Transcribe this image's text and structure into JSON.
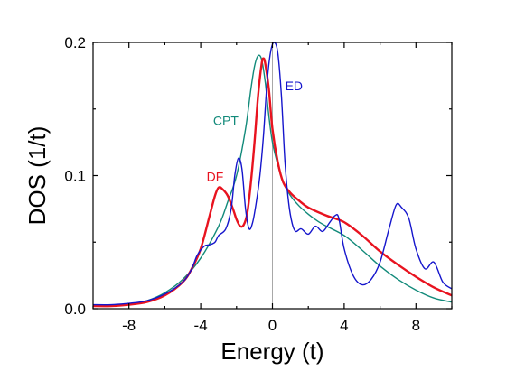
{
  "chart_data": {
    "type": "line",
    "title": "",
    "xlabel": "Energy (t)",
    "ylabel": "DOS (1/t)",
    "xlim": [
      -10,
      10
    ],
    "ylim": [
      0,
      0.2
    ],
    "x_ticks": [
      -8,
      -4,
      0,
      4,
      8
    ],
    "x_tick_labels": [
      "-8",
      "-4",
      "0",
      "4",
      "8"
    ],
    "y_ticks": [
      0,
      0.1,
      0.2
    ],
    "y_tick_labels": [
      "0.0",
      "0.1",
      "0.2"
    ],
    "grid": false,
    "legend": "none",
    "reference_line_x": 0,
    "series": [
      {
        "name": "CPT",
        "color": "#128a7a",
        "points": [
          [
            -10,
            0.002
          ],
          [
            -9,
            0.002
          ],
          [
            -8,
            0.003
          ],
          [
            -7,
            0.006
          ],
          [
            -6,
            0.012
          ],
          [
            -5,
            0.022
          ],
          [
            -4,
            0.038
          ],
          [
            -3,
            0.062
          ],
          [
            -2.5,
            0.08
          ],
          [
            -2,
            0.1
          ],
          [
            -1.5,
            0.135
          ],
          [
            -1.2,
            0.165
          ],
          [
            -1,
            0.182
          ],
          [
            -0.8,
            0.19
          ],
          [
            -0.6,
            0.187
          ],
          [
            -0.4,
            0.17
          ],
          [
            -0.2,
            0.145
          ],
          [
            0,
            0.125
          ],
          [
            0.3,
            0.108
          ],
          [
            0.6,
            0.095
          ],
          [
            1,
            0.085
          ],
          [
            1.5,
            0.077
          ],
          [
            2,
            0.071
          ],
          [
            2.5,
            0.066
          ],
          [
            3,
            0.062
          ],
          [
            4,
            0.055
          ],
          [
            5,
            0.044
          ],
          [
            6,
            0.032
          ],
          [
            7,
            0.022
          ],
          [
            8,
            0.014
          ],
          [
            9,
            0.008
          ],
          [
            10,
            0.005
          ]
        ]
      },
      {
        "name": "DF",
        "color": "#e8131f",
        "points": [
          [
            -10,
            0.002
          ],
          [
            -9,
            0.002
          ],
          [
            -8,
            0.003
          ],
          [
            -7,
            0.005
          ],
          [
            -6,
            0.01
          ],
          [
            -5,
            0.02
          ],
          [
            -4.5,
            0.03
          ],
          [
            -4,
            0.045
          ],
          [
            -3.5,
            0.07
          ],
          [
            -3.2,
            0.085
          ],
          [
            -3,
            0.091
          ],
          [
            -2.8,
            0.09
          ],
          [
            -2.5,
            0.085
          ],
          [
            -2.2,
            0.075
          ],
          [
            -2,
            0.067
          ],
          [
            -1.8,
            0.062
          ],
          [
            -1.6,
            0.063
          ],
          [
            -1.4,
            0.072
          ],
          [
            -1.2,
            0.095
          ],
          [
            -1,
            0.125
          ],
          [
            -0.8,
            0.16
          ],
          [
            -0.6,
            0.184
          ],
          [
            -0.5,
            0.188
          ],
          [
            -0.4,
            0.184
          ],
          [
            -0.2,
            0.165
          ],
          [
            0,
            0.135
          ],
          [
            0.3,
            0.11
          ],
          [
            0.6,
            0.095
          ],
          [
            1,
            0.087
          ],
          [
            1.5,
            0.081
          ],
          [
            2,
            0.076
          ],
          [
            3,
            0.07
          ],
          [
            4,
            0.065
          ],
          [
            5,
            0.055
          ],
          [
            6,
            0.043
          ],
          [
            7,
            0.033
          ],
          [
            8,
            0.024
          ],
          [
            9,
            0.016
          ],
          [
            10,
            0.01
          ]
        ]
      },
      {
        "name": "ED",
        "color": "#1515cc",
        "points": [
          [
            -10,
            0.003
          ],
          [
            -9,
            0.003
          ],
          [
            -8,
            0.004
          ],
          [
            -7,
            0.006
          ],
          [
            -6,
            0.011
          ],
          [
            -5,
            0.02
          ],
          [
            -4.5,
            0.03
          ],
          [
            -4.2,
            0.04
          ],
          [
            -3.8,
            0.047
          ],
          [
            -3.5,
            0.048
          ],
          [
            -3.2,
            0.05
          ],
          [
            -3,
            0.055
          ],
          [
            -2.6,
            0.06
          ],
          [
            -2.3,
            0.075
          ],
          [
            -2.1,
            0.1
          ],
          [
            -1.9,
            0.113
          ],
          [
            -1.7,
            0.105
          ],
          [
            -1.5,
            0.075
          ],
          [
            -1.3,
            0.06
          ],
          [
            -1.1,
            0.065
          ],
          [
            -0.9,
            0.08
          ],
          [
            -0.7,
            0.1
          ],
          [
            -0.5,
            0.13
          ],
          [
            -0.3,
            0.17
          ],
          [
            -0.1,
            0.193
          ],
          [
            0.1,
            0.2
          ],
          [
            0.3,
            0.192
          ],
          [
            0.5,
            0.16
          ],
          [
            0.7,
            0.11
          ],
          [
            0.9,
            0.08
          ],
          [
            1.1,
            0.064
          ],
          [
            1.3,
            0.058
          ],
          [
            1.6,
            0.06
          ],
          [
            2,
            0.056
          ],
          [
            2.4,
            0.062
          ],
          [
            2.8,
            0.058
          ],
          [
            3.2,
            0.065
          ],
          [
            3.5,
            0.07
          ],
          [
            3.7,
            0.068
          ],
          [
            4,
            0.045
          ],
          [
            4.5,
            0.025
          ],
          [
            5,
            0.018
          ],
          [
            5.5,
            0.022
          ],
          [
            6,
            0.035
          ],
          [
            6.5,
            0.06
          ],
          [
            6.9,
            0.078
          ],
          [
            7.2,
            0.076
          ],
          [
            7.6,
            0.068
          ],
          [
            8,
            0.045
          ],
          [
            8.5,
            0.03
          ],
          [
            9,
            0.035
          ],
          [
            9.5,
            0.02
          ],
          [
            10,
            0.015
          ]
        ]
      }
    ],
    "annotations": [
      {
        "text": "CPT",
        "x": -2.6,
        "y": 0.138,
        "color": "#128a7a"
      },
      {
        "text": "DF",
        "x": -3.2,
        "y": 0.096,
        "color": "#e8131f"
      },
      {
        "text": "ED",
        "x": 1.2,
        "y": 0.164,
        "color": "#1515cc"
      }
    ]
  }
}
